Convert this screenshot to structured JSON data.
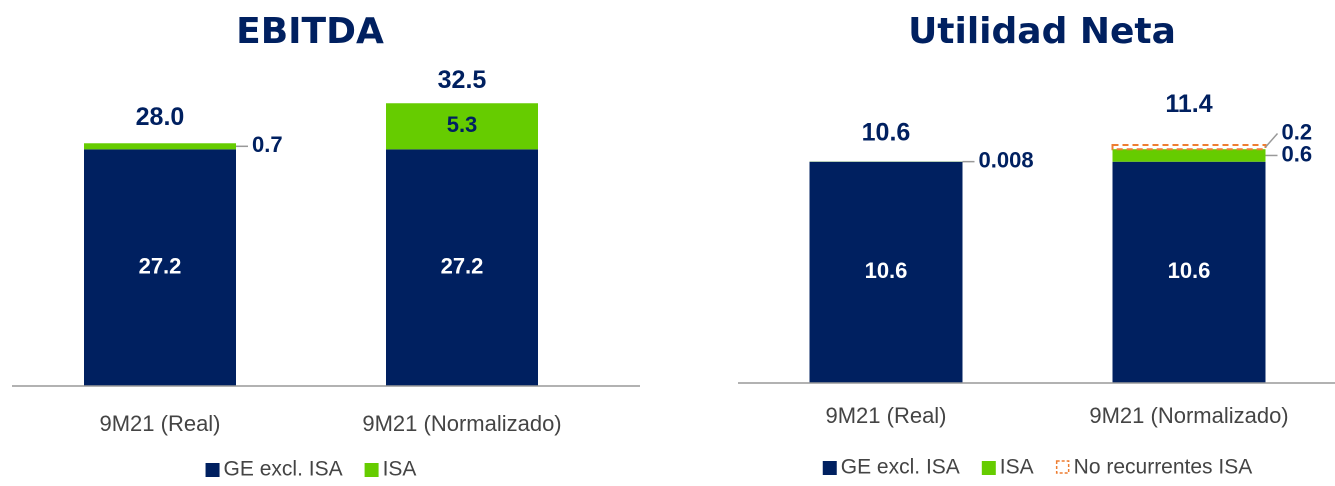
{
  "chart_data": [
    {
      "type": "bar",
      "stacked": true,
      "title": "EBITDA",
      "categories": [
        "9M21 (Real)",
        "9M21 (Normalizado)"
      ],
      "series": [
        {
          "name": "GE excl. ISA",
          "color": "#002060",
          "values": [
            27.2,
            27.2
          ]
        },
        {
          "name": "ISA",
          "color": "#66cc00",
          "values": [
            0.7,
            5.3
          ]
        }
      ],
      "totals": [
        28,
        32.5
      ],
      "total_labels": [
        "28.0",
        "32.5"
      ],
      "ylim": [
        0,
        40
      ],
      "legend": "bottom"
    },
    {
      "type": "bar",
      "stacked": true,
      "title": "Utilidad Neta",
      "categories": [
        "9M21 (Real)",
        "9M21 (Normalizado)"
      ],
      "series": [
        {
          "name": "GE excl. ISA",
          "color": "#002060",
          "values": [
            10.6,
            10.6
          ]
        },
        {
          "name": "ISA",
          "color": "#66cc00",
          "values": [
            0.008,
            0.6
          ]
        },
        {
          "name": "No recurrentes ISA",
          "color": "#ed7d31",
          "dashed": true,
          "values": [
            null,
            0.2
          ]
        }
      ],
      "totals": [
        10.6,
        11.4
      ],
      "total_labels": [
        "10.6",
        "11.4"
      ],
      "ylim": [
        0,
        16
      ],
      "legend": "bottom"
    }
  ]
}
